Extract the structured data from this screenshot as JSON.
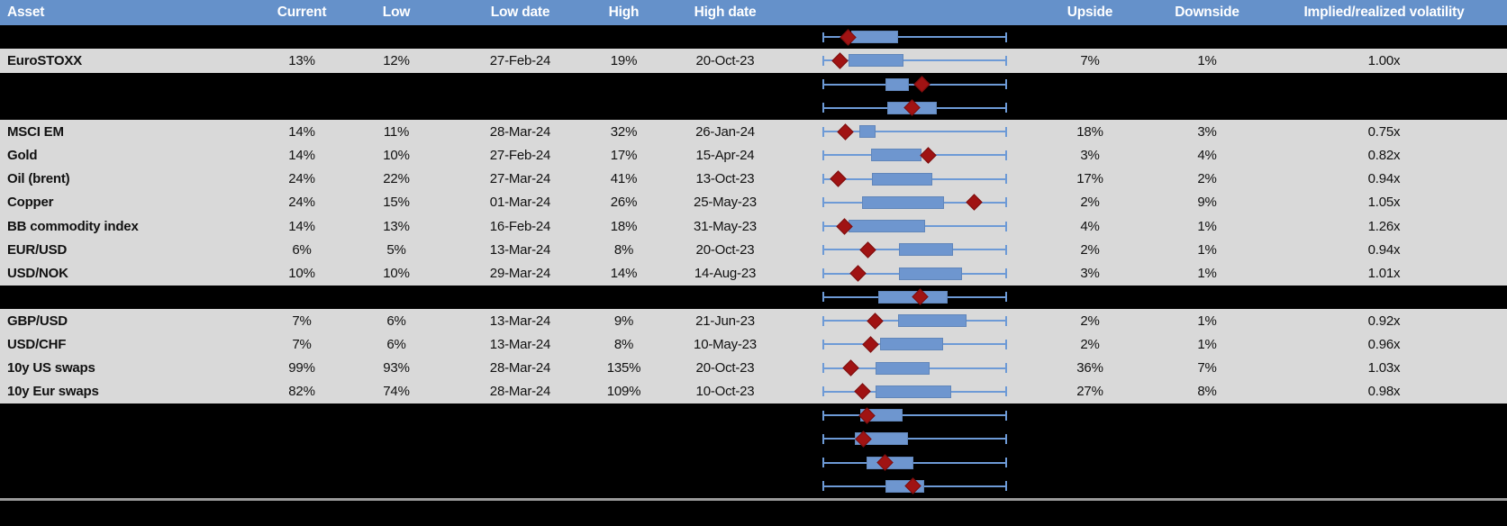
{
  "header": {
    "columns": [
      {
        "key": "asset",
        "label": "Asset"
      },
      {
        "key": "current",
        "label": "Current"
      },
      {
        "key": "low",
        "label": "Low"
      },
      {
        "key": "low_date",
        "label": "Low date"
      },
      {
        "key": "high",
        "label": "High"
      },
      {
        "key": "high_date",
        "label": "High date"
      },
      {
        "key": "chart",
        "label": ""
      },
      {
        "key": "upside",
        "label": "Upside"
      },
      {
        "key": "downside",
        "label": "Downside"
      },
      {
        "key": "implied",
        "label": "Implied/realized volatility"
      }
    ]
  },
  "colors": {
    "header_bg": "#6591ca",
    "row_gray": "#d9d9d9",
    "row_black": "#000000",
    "box_fill": "#6e96cf",
    "box_border": "#6186ba",
    "whisker_blue": "#6d9ad6",
    "diamond_red": "#a01313",
    "divider_gray": "#9a9a9a",
    "header_text": "#ffffff",
    "cell_text": "#111111"
  },
  "rows": [
    {
      "type": "chart",
      "plot": {
        "box": [
          0.156,
          0.41
        ],
        "diamond": 0.137
      }
    },
    {
      "type": "data",
      "asset": "EuroSTOXX",
      "current": "13%",
      "low": "12%",
      "low_date": "27-Feb-24",
      "high": "19%",
      "high_date": "20-Oct-23",
      "upside": "7%",
      "downside": "1%",
      "implied": "1.00x",
      "plot": {
        "box": [
          0.14,
          0.44
        ],
        "diamond": 0.093
      }
    },
    {
      "type": "chart",
      "plot": {
        "box": [
          0.34,
          0.47
        ],
        "diamond": 0.537
      }
    },
    {
      "type": "chart",
      "plot": {
        "box": [
          0.35,
          0.62
        ],
        "diamond": 0.483
      }
    },
    {
      "type": "data",
      "asset": "MSCI EM",
      "current": "14%",
      "low": "11%",
      "low_date": "28-Mar-24",
      "high": "32%",
      "high_date": "26-Jan-24",
      "upside": "18%",
      "downside": "3%",
      "implied": "0.75x",
      "plot": {
        "box": [
          0.2,
          0.29
        ],
        "diamond": 0.122
      }
    },
    {
      "type": "data",
      "asset": "Gold",
      "current": "14%",
      "low": "10%",
      "low_date": "27-Feb-24",
      "high": "17%",
      "high_date": "15-Apr-24",
      "upside": "3%",
      "downside": "4%",
      "implied": "0.82x",
      "plot": {
        "box": [
          0.263,
          0.537
        ],
        "diamond": 0.571
      }
    },
    {
      "type": "data",
      "asset": "Oil (brent)",
      "current": "24%",
      "low": "22%",
      "low_date": "27-Mar-24",
      "high": "41%",
      "high_date": "13-Oct-23",
      "upside": "17%",
      "downside": "2%",
      "implied": "0.94x",
      "plot": {
        "box": [
          0.268,
          0.595
        ],
        "diamond": 0.083
      }
    },
    {
      "type": "data",
      "asset": "Copper",
      "current": "24%",
      "low": "15%",
      "low_date": "01-Mar-24",
      "high": "26%",
      "high_date": "25-May-23",
      "upside": "2%",
      "downside": "9%",
      "implied": "1.05x",
      "plot": {
        "box": [
          0.215,
          0.66
        ],
        "diamond": 0.824
      }
    },
    {
      "type": "data",
      "asset": "BB commodity index",
      "current": "14%",
      "low": "13%",
      "low_date": "16-Feb-24",
      "high": "18%",
      "high_date": "31-May-23",
      "upside": "4%",
      "downside": "1%",
      "implied": "1.26x",
      "plot": {
        "box": [
          0.14,
          0.556
        ],
        "diamond": 0.117
      }
    },
    {
      "type": "data",
      "asset": "EUR/USD",
      "current": "6%",
      "low": "5%",
      "low_date": "13-Mar-24",
      "high": "8%",
      "high_date": "20-Oct-23",
      "upside": "2%",
      "downside": "1%",
      "implied": "0.94x",
      "plot": {
        "box": [
          0.415,
          0.707
        ],
        "diamond": 0.244
      }
    },
    {
      "type": "data",
      "asset": "USD/NOK",
      "current": "10%",
      "low": "10%",
      "low_date": "29-Mar-24",
      "high": "14%",
      "high_date": "14-Aug-23",
      "upside": "3%",
      "downside": "1%",
      "implied": "1.01x",
      "plot": {
        "box": [
          0.414,
          0.757
        ],
        "diamond": 0.19
      }
    },
    {
      "type": "chart",
      "plot": {
        "box": [
          0.302,
          0.678
        ],
        "diamond": 0.531
      }
    },
    {
      "type": "data",
      "asset": "GBP/USD",
      "current": "7%",
      "low": "6%",
      "low_date": "13-Mar-24",
      "high": "9%",
      "high_date": "21-Jun-23",
      "upside": "2%",
      "downside": "1%",
      "implied": "0.92x",
      "plot": {
        "box": [
          0.41,
          0.78
        ],
        "diamond": 0.283
      }
    },
    {
      "type": "data",
      "asset": "USD/CHF",
      "current": "7%",
      "low": "6%",
      "low_date": "13-Mar-24",
      "high": "8%",
      "high_date": "10-May-23",
      "upside": "2%",
      "downside": "1%",
      "implied": "0.96x",
      "plot": {
        "box": [
          0.31,
          0.652
        ],
        "diamond": 0.259
      }
    },
    {
      "type": "data",
      "asset": "10y US swaps",
      "current": "99%",
      "low": "93%",
      "low_date": "28-Mar-24",
      "high": "135%",
      "high_date": "20-Oct-23",
      "upside": "36%",
      "downside": "7%",
      "implied": "1.03x",
      "plot": {
        "box": [
          0.287,
          0.582
        ],
        "diamond": 0.152
      }
    },
    {
      "type": "data",
      "asset": "10y Eur swaps",
      "current": "82%",
      "low": "74%",
      "low_date": "28-Mar-24",
      "high": "109%",
      "high_date": "10-Oct-23",
      "upside": "27%",
      "downside": "8%",
      "implied": "0.98x",
      "plot": {
        "box": [
          0.289,
          0.697
        ],
        "diamond": 0.215
      }
    },
    {
      "type": "chart",
      "plot": {
        "box": [
          0.205,
          0.434
        ],
        "diamond": 0.239
      }
    },
    {
      "type": "chart",
      "plot": {
        "box": [
          0.176,
          0.463
        ],
        "diamond": 0.224
      }
    },
    {
      "type": "chart",
      "plot": {
        "box": [
          0.239,
          0.493
        ],
        "diamond": 0.341
      }
    },
    {
      "type": "chart",
      "plot": {
        "box": [
          0.341,
          0.551
        ],
        "diamond": 0.488
      }
    }
  ],
  "chart_data": {
    "type": "boxplot",
    "orientation": "horizontal",
    "note": "Each row shows a horizontal whisker spanning the Low-to-High 1y volatility range, a blue box for the interquartile-style range, and a dark-red diamond marking the Current level. Fractions are 0=Low end of whisker, 1=High end.",
    "series": [
      {
        "row": "(hidden)",
        "box": [
          0.156,
          0.41
        ],
        "diamond": 0.137
      },
      {
        "row": "EuroSTOXX",
        "box": [
          0.14,
          0.44
        ],
        "diamond": 0.093
      },
      {
        "row": "(hidden)",
        "box": [
          0.34,
          0.47
        ],
        "diamond": 0.537
      },
      {
        "row": "(hidden)",
        "box": [
          0.35,
          0.62
        ],
        "diamond": 0.483
      },
      {
        "row": "MSCI EM",
        "box": [
          0.2,
          0.29
        ],
        "diamond": 0.122
      },
      {
        "row": "Gold",
        "box": [
          0.263,
          0.537
        ],
        "diamond": 0.571
      },
      {
        "row": "Oil (brent)",
        "box": [
          0.268,
          0.595
        ],
        "diamond": 0.083
      },
      {
        "row": "Copper",
        "box": [
          0.215,
          0.66
        ],
        "diamond": 0.824
      },
      {
        "row": "BB commodity index",
        "box": [
          0.14,
          0.556
        ],
        "diamond": 0.117
      },
      {
        "row": "EUR/USD",
        "box": [
          0.415,
          0.707
        ],
        "diamond": 0.244
      },
      {
        "row": "USD/NOK",
        "box": [
          0.414,
          0.757
        ],
        "diamond": 0.19
      },
      {
        "row": "(hidden)",
        "box": [
          0.302,
          0.678
        ],
        "diamond": 0.531
      },
      {
        "row": "GBP/USD",
        "box": [
          0.41,
          0.78
        ],
        "diamond": 0.283
      },
      {
        "row": "USD/CHF",
        "box": [
          0.31,
          0.652
        ],
        "diamond": 0.259
      },
      {
        "row": "10y US swaps",
        "box": [
          0.287,
          0.582
        ],
        "diamond": 0.152
      },
      {
        "row": "10y Eur swaps",
        "box": [
          0.289,
          0.697
        ],
        "diamond": 0.215
      },
      {
        "row": "(hidden)",
        "box": [
          0.205,
          0.434
        ],
        "diamond": 0.239
      },
      {
        "row": "(hidden)",
        "box": [
          0.176,
          0.463
        ],
        "diamond": 0.224
      },
      {
        "row": "(hidden)",
        "box": [
          0.239,
          0.493
        ],
        "diamond": 0.341
      },
      {
        "row": "(hidden)",
        "box": [
          0.341,
          0.551
        ],
        "diamond": 0.488
      }
    ]
  }
}
